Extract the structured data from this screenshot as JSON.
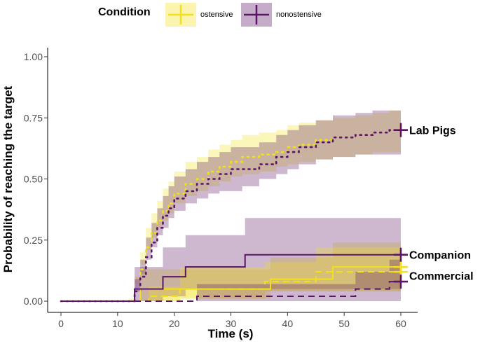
{
  "chart_data": {
    "type": "line",
    "subtype": "kaplan-meier step curves with confidence bands",
    "title": "",
    "xlabel": "Time (s)",
    "ylabel": "Probability of reaching the target",
    "xlim": [
      0,
      60
    ],
    "ylim": [
      0,
      1
    ],
    "x_ticks": [
      "0",
      "10",
      "20",
      "30",
      "40",
      "50",
      "60"
    ],
    "y_ticks": [
      "0.00",
      "0.25",
      "0.50",
      "0.75",
      "1.00"
    ],
    "grid": false,
    "legend": {
      "title": "Condition",
      "placement": "top",
      "entries": [
        {
          "label": "ostensive",
          "color": "#f2e01a"
        },
        {
          "label": "nonostensive",
          "color": "#5a1565"
        }
      ]
    },
    "colors": {
      "ostensive": "#f2e01a",
      "nonostensive": "#5a1565"
    },
    "group_labels": [
      {
        "text": "Lab Pigs",
        "y": 0.7
      },
      {
        "text": "Companion",
        "y": 0.19
      },
      {
        "text": "Commercial",
        "y": 0.105
      }
    ],
    "series": [
      {
        "condition": "ostensive",
        "group": "Lab Pigs",
        "dash": "dotted",
        "x": [
          0,
          12,
          13,
          14,
          15,
          16,
          17,
          18,
          19,
          20,
          22,
          24,
          26,
          28,
          30,
          32,
          35,
          38,
          40,
          42,
          45,
          48,
          52,
          55,
          58,
          60
        ],
        "y": [
          0,
          0,
          0.05,
          0.13,
          0.22,
          0.28,
          0.33,
          0.37,
          0.4,
          0.44,
          0.48,
          0.5,
          0.53,
          0.55,
          0.57,
          0.59,
          0.6,
          0.61,
          0.63,
          0.64,
          0.66,
          0.67,
          0.68,
          0.69,
          0.7,
          0.7
        ],
        "ci_low": [
          0,
          0,
          0.01,
          0.07,
          0.15,
          0.21,
          0.26,
          0.3,
          0.33,
          0.36,
          0.4,
          0.43,
          0.45,
          0.47,
          0.49,
          0.51,
          0.52,
          0.53,
          0.55,
          0.56,
          0.57,
          0.58,
          0.59,
          0.6,
          0.61,
          0.61
        ],
        "ci_high": [
          0,
          0,
          0.1,
          0.2,
          0.3,
          0.36,
          0.41,
          0.46,
          0.49,
          0.53,
          0.57,
          0.59,
          0.62,
          0.64,
          0.66,
          0.68,
          0.69,
          0.7,
          0.72,
          0.73,
          0.74,
          0.75,
          0.76,
          0.77,
          0.78,
          0.78
        ]
      },
      {
        "condition": "nonostensive",
        "group": "Lab Pigs",
        "dash": "dotted",
        "x": [
          0,
          12,
          13,
          14,
          15,
          16,
          17,
          18,
          19,
          20,
          22,
          24,
          26,
          28,
          30,
          32,
          35,
          38,
          40,
          42,
          45,
          48,
          52,
          55,
          58,
          60
        ],
        "y": [
          0,
          0,
          0.04,
          0.1,
          0.18,
          0.24,
          0.3,
          0.35,
          0.38,
          0.42,
          0.45,
          0.48,
          0.5,
          0.52,
          0.54,
          0.54,
          0.56,
          0.59,
          0.61,
          0.63,
          0.65,
          0.67,
          0.68,
          0.69,
          0.7,
          0.7
        ],
        "ci_low": [
          0,
          0,
          0.0,
          0.04,
          0.11,
          0.17,
          0.22,
          0.27,
          0.3,
          0.34,
          0.37,
          0.4,
          0.42,
          0.44,
          0.45,
          0.45,
          0.47,
          0.5,
          0.52,
          0.54,
          0.56,
          0.58,
          0.59,
          0.6,
          0.6,
          0.6
        ],
        "ci_high": [
          0,
          0,
          0.09,
          0.17,
          0.26,
          0.32,
          0.38,
          0.43,
          0.47,
          0.51,
          0.54,
          0.57,
          0.59,
          0.61,
          0.63,
          0.63,
          0.65,
          0.68,
          0.7,
          0.72,
          0.74,
          0.76,
          0.77,
          0.78,
          0.78,
          0.78
        ]
      },
      {
        "condition": "ostensive",
        "group": "Companion",
        "dash": "solid",
        "x": [
          0,
          12,
          14,
          21,
          37,
          48,
          60
        ],
        "y": [
          0,
          0,
          0.05,
          0.05,
          0.09,
          0.14,
          0.14
        ],
        "ci_low": [
          0,
          0,
          0.0,
          0.0,
          0.01,
          0.04,
          0.04
        ],
        "ci_high": [
          0,
          0,
          0.13,
          0.13,
          0.18,
          0.24,
          0.24
        ]
      },
      {
        "condition": "nonostensive",
        "group": "Companion",
        "dash": "solid",
        "x": [
          0,
          13,
          18,
          22,
          32.5,
          60
        ],
        "y": [
          0,
          0.05,
          0.1,
          0.14,
          0.19,
          0.19
        ],
        "ci_low": [
          0,
          0.0,
          0.0,
          0.02,
          0.05,
          0.05
        ],
        "ci_high": [
          0,
          0.14,
          0.22,
          0.27,
          0.34,
          0.34
        ]
      },
      {
        "condition": "ostensive",
        "group": "Commercial",
        "dash": "dashed",
        "x": [
          0,
          15.5,
          21,
          36,
          45,
          60
        ],
        "y": [
          0,
          0.02,
          0.05,
          0.08,
          0.12,
          0.12
        ],
        "ci_low": [
          0,
          0.0,
          0.0,
          0.01,
          0.04,
          0.04
        ],
        "ci_high": [
          0,
          0.06,
          0.14,
          0.16,
          0.22,
          0.22
        ]
      },
      {
        "condition": "nonostensive",
        "group": "Commercial",
        "dash": "dashed",
        "x": [
          0,
          24,
          52,
          58,
          60
        ],
        "y": [
          0,
          0.02,
          0.05,
          0.08,
          0.08
        ],
        "ci_low": [
          0,
          0.0,
          0.0,
          0.0,
          0.0
        ],
        "ci_high": [
          0,
          0.07,
          0.12,
          0.17,
          0.17
        ]
      }
    ]
  }
}
